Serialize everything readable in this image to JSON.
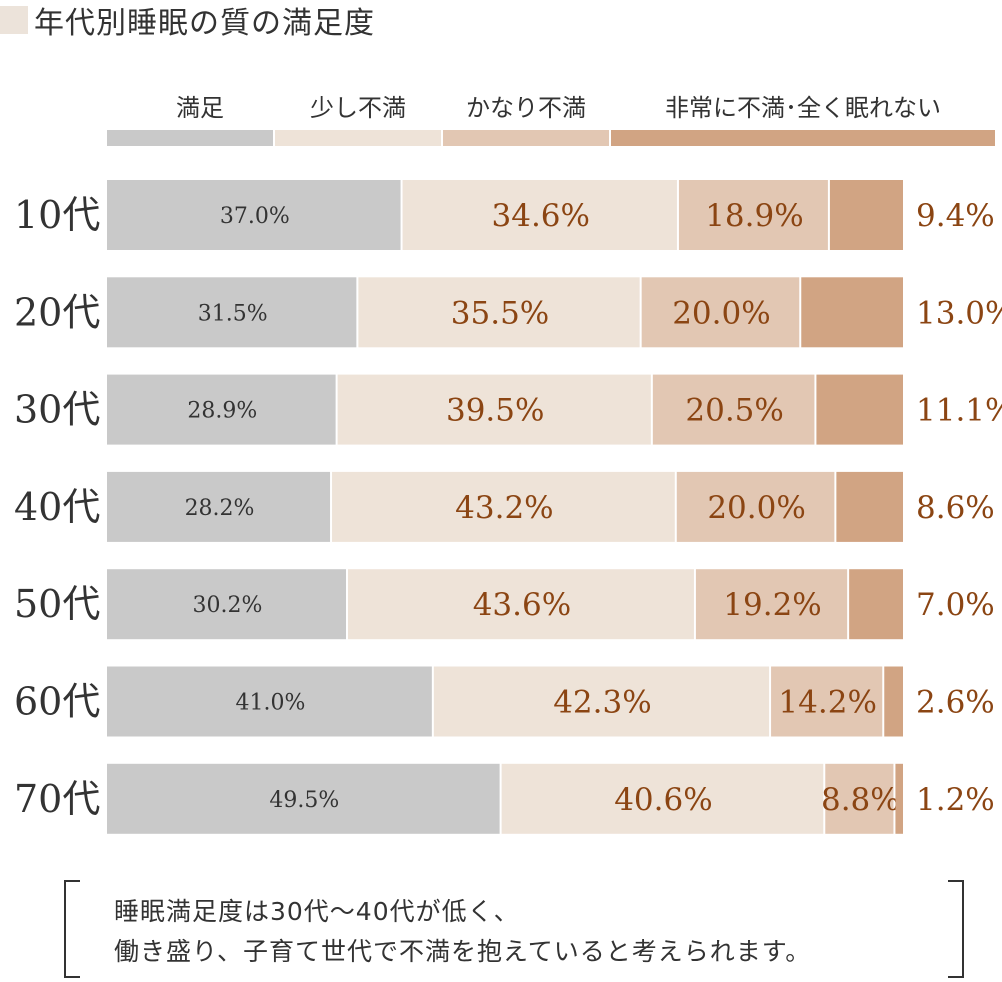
{
  "title": "年代別睡眠の質の満足度",
  "colors": {
    "title_box": "#ece3da",
    "series": [
      "#c9c9c9",
      "#eee3d8",
      "#e2c7b3",
      "#d1a483"
    ],
    "label_dark": "#333333",
    "label_brown": "#8b4513"
  },
  "chart_data": {
    "type": "bar",
    "orientation": "horizontal",
    "stacked": true,
    "unit": "%",
    "categories": [
      "10代",
      "20代",
      "30代",
      "40代",
      "50代",
      "60代",
      "70代"
    ],
    "series": [
      {
        "name": "満足",
        "values": [
          37.0,
          31.5,
          28.9,
          28.2,
          30.2,
          41.0,
          49.5
        ]
      },
      {
        "name": "少し不満",
        "values": [
          34.6,
          35.5,
          39.5,
          43.2,
          43.6,
          42.3,
          40.6
        ]
      },
      {
        "name": "かなり不満",
        "values": [
          18.9,
          20.0,
          20.5,
          20.0,
          19.2,
          14.2,
          8.8
        ]
      },
      {
        "name": "非常に不満･全く眠れない",
        "values": [
          9.4,
          13.0,
          11.1,
          8.6,
          7.0,
          2.6,
          1.2
        ]
      }
    ],
    "legend": "top",
    "grid": false
  },
  "note": {
    "line1": "睡眠満足度は30代～40代が低く、",
    "line2": "働き盛り、子育て世代で不満を抱えていると考えられます。"
  }
}
